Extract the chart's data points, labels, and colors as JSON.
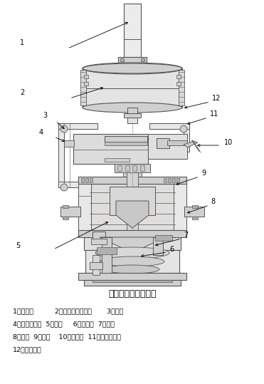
{
  "title": "氮气入口压力调节阀",
  "bg": "#ffffff",
  "lc": "#555555",
  "fc_light": "#e8e8e8",
  "fc_mid": "#d0d0d0",
  "fc_dark": "#b0b0b0",
  "fig_w": 3.71,
  "fig_h": 5.39,
  "dpi": 100,
  "leg1": "1、指挥器          2、检测执行机构器       3、接管",
  "leg2": "4、减压过滤器  5、主阀     6、主阀芯  7、阀杆",
  "leg3": "8、插杆  9、弹簧    10、节流阀  11、指挥器阀芯",
  "leg4": "12、接口螺纹"
}
